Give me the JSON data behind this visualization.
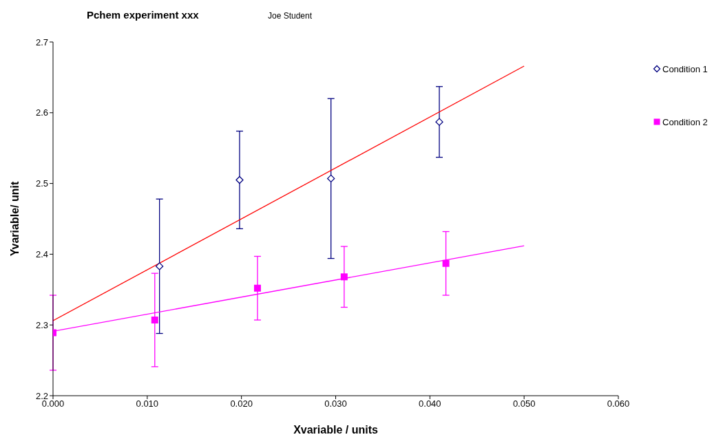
{
  "chart_data": {
    "type": "scatter",
    "title": "Pchem experiment xxx",
    "subtitle": "Joe Student",
    "xlabel": "Xvariable / units",
    "ylabel": "Yvariable/ unit",
    "xlim": [
      0,
      0.06
    ],
    "xticks": [
      {
        "value": 0,
        "label": "0.000"
      },
      {
        "value": 0.01,
        "label": "0.010"
      },
      {
        "value": 0.02,
        "label": "0.020"
      },
      {
        "value": 0.03,
        "label": "0.030"
      },
      {
        "value": 0.04,
        "label": "0.040"
      },
      {
        "value": 0.05,
        "label": "0.050"
      },
      {
        "value": 0.06,
        "label": "0.060"
      }
    ],
    "ylim": [
      2.2,
      2.7
    ],
    "yticks": [
      2.2,
      2.3,
      2.4,
      2.5,
      2.6,
      2.7
    ],
    "grid": false,
    "legend": "top right",
    "series": [
      {
        "name": "Condition 1",
        "color": "#000080",
        "marker": "diamond",
        "x": [
          0.0113,
          0.0198,
          0.0295,
          0.041
        ],
        "values": [
          2.383,
          2.505,
          2.507,
          2.587
        ],
        "errors": [
          0.095,
          0.069,
          0.113,
          0.05
        ]
      },
      {
        "name": "Condition 2",
        "color": "#ff00ff",
        "marker": "square",
        "x": [
          0,
          0.0108,
          0.0217,
          0.0309,
          0.0417
        ],
        "values": [
          2.289,
          2.307,
          2.352,
          2.368,
          2.387
        ],
        "errors": [
          0.053,
          0.066,
          0.045,
          0.043,
          0.045
        ]
      },
      {
        "type": "line",
        "color": "#ff0000",
        "marker": "none",
        "x": [
          0,
          0.05
        ],
        "values": [
          2.306,
          2.666
        ]
      },
      {
        "type": "line",
        "color": "#ff00ff",
        "marker": "none",
        "x": [
          0,
          0.05
        ],
        "values": [
          2.291,
          2.412
        ]
      }
    ]
  }
}
